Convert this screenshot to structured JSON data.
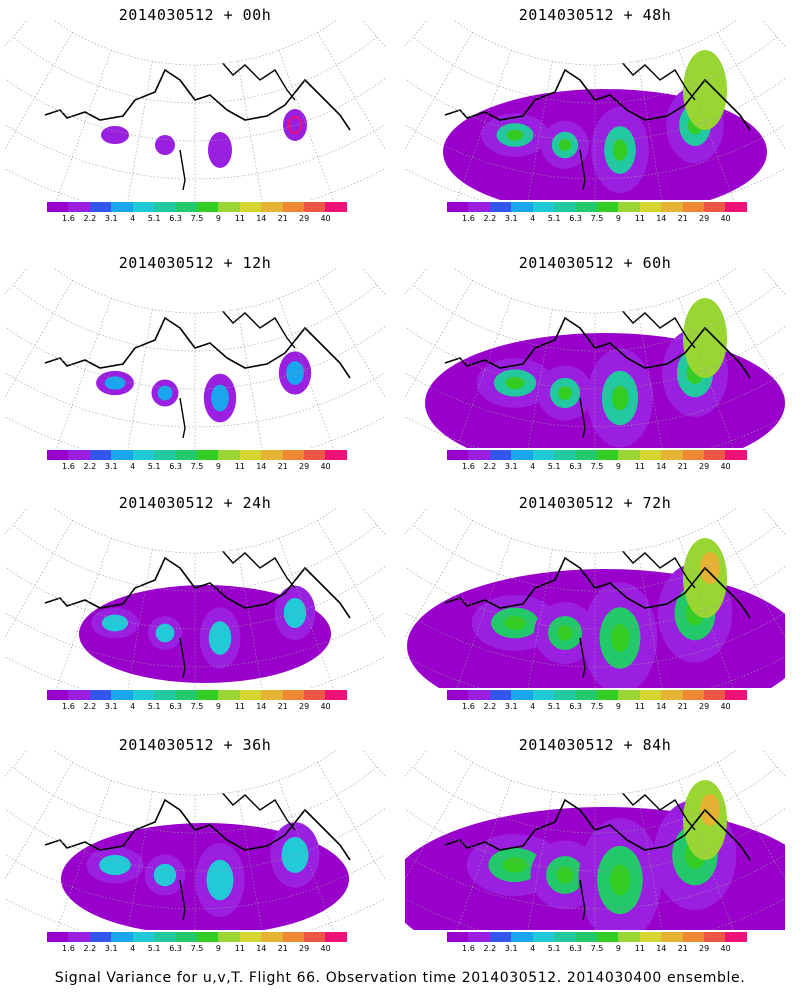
{
  "panels": [
    {
      "title": "2014030512 + 00h",
      "intensity": 0
    },
    {
      "title": "2014030512 + 48h",
      "intensity": 4
    },
    {
      "title": "2014030512 + 12h",
      "intensity": 1
    },
    {
      "title": "2014030512 + 60h",
      "intensity": 5
    },
    {
      "title": "2014030512 + 24h",
      "intensity": 2
    },
    {
      "title": "2014030512 + 72h",
      "intensity": 6
    },
    {
      "title": "2014030512 + 36h",
      "intensity": 3
    },
    {
      "title": "2014030512 + 84h",
      "intensity": 7
    }
  ],
  "colorbar": {
    "labels": [
      "1.6",
      "2.2",
      "3.1",
      "4",
      "5.1",
      "6.3",
      "7.5",
      "9",
      "11",
      "14",
      "21",
      "29",
      "40"
    ],
    "colors": [
      "#9900cc",
      "#9a1fe0",
      "#3355ee",
      "#1aa6ee",
      "#22c9d6",
      "#22c8a0",
      "#22c86a",
      "#33cc22",
      "#99d633",
      "#d6d633",
      "#e6b233",
      "#ee8833",
      "#ee5544",
      "#ee1177"
    ]
  },
  "footer": "Signal Variance for u,v,T. Flight 66. Observation time 2014030512. 2014030400 ensemble."
}
